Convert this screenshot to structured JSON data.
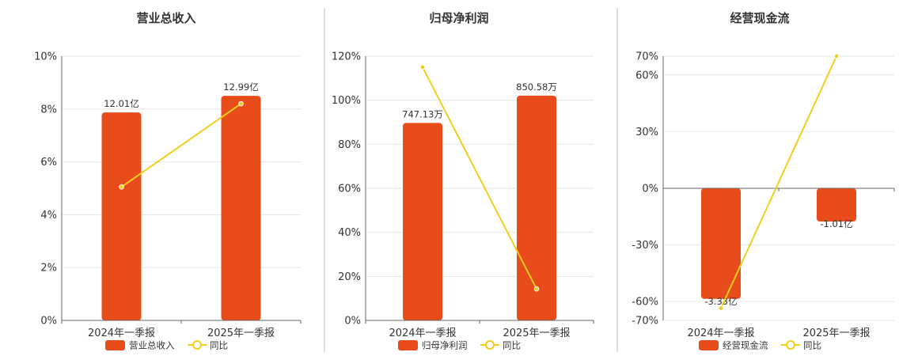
{
  "colors": {
    "bar": "#E84C1B",
    "line": "#F2CE1A",
    "grid": "#e6e6e6",
    "axis": "#666666",
    "text": "#333333"
  },
  "chart_data": [
    {
      "type": "bar",
      "title": "营业总收入",
      "categories": [
        "2024年一季报",
        "2025年一季报"
      ],
      "ylim": [
        0,
        10
      ],
      "yticks": [
        0,
        2,
        4,
        6,
        8,
        10
      ],
      "ytick_labels": [
        "0%",
        "2%",
        "4%",
        "6%",
        "8%",
        "10%"
      ],
      "bar_values": [
        7.87,
        8.5
      ],
      "bar_labels": [
        "12.01亿",
        "12.99亿"
      ],
      "line_values": [
        5.05,
        8.2
      ],
      "legend": [
        "营业总收入",
        "同比"
      ]
    },
    {
      "type": "bar",
      "title": "归母净利润",
      "categories": [
        "2024年一季报",
        "2025年一季报"
      ],
      "ylim": [
        0,
        120
      ],
      "yticks": [
        0,
        20,
        40,
        60,
        80,
        100,
        120
      ],
      "ytick_labels": [
        "0%",
        "20%",
        "40%",
        "60%",
        "80%",
        "100%",
        "120%"
      ],
      "bar_values": [
        89.7,
        102.1
      ],
      "bar_labels": [
        "747.13万",
        "850.58万"
      ],
      "line_values": [
        115.0,
        14.3
      ],
      "legend": [
        "归母净利润",
        "同比"
      ]
    },
    {
      "type": "bar",
      "title": "经营现金流",
      "categories": [
        "2024年一季报",
        "2025年一季报"
      ],
      "ylim": [
        -70,
        70
      ],
      "yticks": [
        -70,
        -60,
        -30,
        0,
        30,
        60,
        70
      ],
      "ytick_labels": [
        "-70%",
        "-60%",
        "-30%",
        "0%",
        "30%",
        "60%",
        "70%"
      ],
      "bar_values": [
        -58.6,
        -17.6
      ],
      "bar_labels": [
        "-3.33亿",
        "-1.01亿"
      ],
      "line_values": [
        -63.5,
        70
      ],
      "legend": [
        "经营现金流",
        "同比"
      ]
    }
  ]
}
